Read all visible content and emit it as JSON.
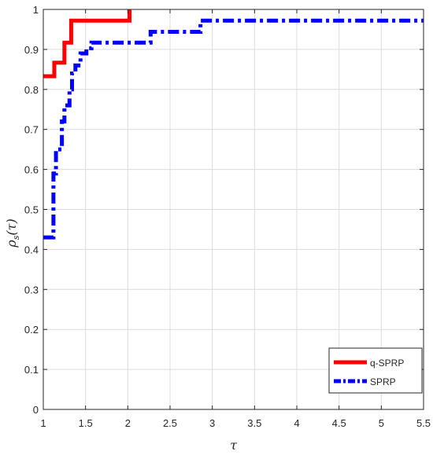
{
  "chart_data": {
    "type": "line",
    "title": "",
    "xlabel": "τ",
    "ylabel": "ρ_s(τ)",
    "ylabel_parts": {
      "base": "ρ",
      "sub": "s",
      "arg": "(τ)"
    },
    "xlim": [
      1,
      5.5
    ],
    "ylim": [
      0,
      1
    ],
    "x_ticks": [
      1,
      1.5,
      2,
      2.5,
      3,
      3.5,
      4,
      4.5,
      5,
      5.5
    ],
    "x_tick_labels": [
      "1",
      "1.5",
      "2",
      "2.5",
      "3",
      "3.5",
      "4",
      "4.5",
      "5",
      "5.5"
    ],
    "y_ticks": [
      0,
      0.1,
      0.2,
      0.3,
      0.4,
      0.5,
      0.6,
      0.7,
      0.8,
      0.9,
      1
    ],
    "y_tick_labels": [
      "0",
      "0.1",
      "0.2",
      "0.3",
      "0.4",
      "0.5",
      "0.6",
      "0.7",
      "0.8",
      "0.9",
      "1"
    ],
    "grid": true,
    "legend_position": "bottom-right",
    "series": [
      {
        "name": "q-SPRP",
        "color": "#ff0000",
        "line_style": "solid",
        "step_points": [
          [
            1.0,
            0.833
          ],
          [
            1.13,
            0.833
          ],
          [
            1.13,
            0.867
          ],
          [
            1.25,
            0.867
          ],
          [
            1.25,
            0.917
          ],
          [
            1.33,
            0.917
          ],
          [
            1.33,
            0.972
          ],
          [
            2.02,
            0.972
          ],
          [
            2.02,
            1.0
          ]
        ]
      },
      {
        "name": "SPRP",
        "color": "#0000ff",
        "line_style": "dash-dot",
        "step_points": [
          [
            1.0,
            0.43
          ],
          [
            1.12,
            0.43
          ],
          [
            1.12,
            0.59
          ],
          [
            1.15,
            0.59
          ],
          [
            1.15,
            0.65
          ],
          [
            1.22,
            0.65
          ],
          [
            1.22,
            0.72
          ],
          [
            1.25,
            0.72
          ],
          [
            1.25,
            0.76
          ],
          [
            1.31,
            0.76
          ],
          [
            1.31,
            0.8
          ],
          [
            1.34,
            0.8
          ],
          [
            1.34,
            0.84
          ],
          [
            1.38,
            0.84
          ],
          [
            1.38,
            0.86
          ],
          [
            1.44,
            0.86
          ],
          [
            1.44,
            0.89
          ],
          [
            1.51,
            0.89
          ],
          [
            1.51,
            0.903
          ],
          [
            1.57,
            0.903
          ],
          [
            1.57,
            0.917
          ],
          [
            2.27,
            0.917
          ],
          [
            2.27,
            0.944
          ],
          [
            2.86,
            0.944
          ],
          [
            2.86,
            0.972
          ],
          [
            5.5,
            0.972
          ]
        ]
      }
    ]
  }
}
